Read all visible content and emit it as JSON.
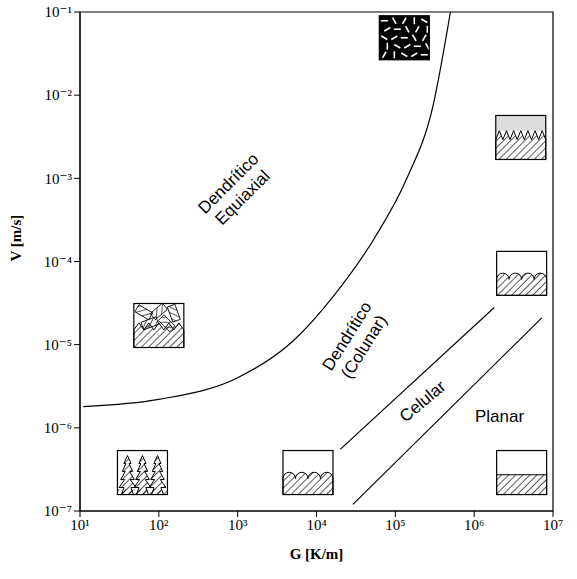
{
  "chart_data": {
    "type": "line",
    "x_label": "G [K/m]",
    "y_label": "V [m/s]",
    "log": true,
    "grid": false,
    "xlim": [
      10,
      10000000
    ],
    "ylim": [
      1e-07,
      0.1
    ],
    "xticks": [
      {
        "value": 10,
        "label": "10¹"
      },
      {
        "value": 100,
        "label": "10²"
      },
      {
        "value": 1000,
        "label": "10³"
      },
      {
        "value": 10000,
        "label": "10⁴"
      },
      {
        "value": 100000,
        "label": "10⁵"
      },
      {
        "value": 1000000,
        "label": "10⁶"
      },
      {
        "value": 10000000,
        "label": "10⁷"
      }
    ],
    "yticks": [
      {
        "value": 1e-07,
        "label": "10⁻⁷"
      },
      {
        "value": 1e-06,
        "label": "10⁻⁶"
      },
      {
        "value": 1e-05,
        "label": "10⁻⁵"
      },
      {
        "value": 0.0001,
        "label": "10⁻⁴"
      },
      {
        "value": 0.001,
        "label": "10⁻³"
      },
      {
        "value": 0.01,
        "label": "10⁻²"
      },
      {
        "value": 0.1,
        "label": "10⁻¹"
      }
    ],
    "series": [
      {
        "type": "line",
        "color": "#000000",
        "x": [
          11,
          100,
          1000,
          5000,
          17000,
          56000,
          140000,
          300000,
          500000
        ],
        "values": [
          1.8e-06,
          2.2e-06,
          4e-06,
          1.1e-05,
          4e-05,
          0.0002,
          0.001,
          0.0074,
          0.1
        ]
      },
      {
        "type": "line",
        "color": "#000000",
        "x": [
          20000,
          1800000
        ],
        "values": [
          5.5e-07,
          2.8e-05
        ]
      },
      {
        "type": "line",
        "color": "#000000",
        "x": [
          29000,
          7200000
        ],
        "values": [
          1.2e-07,
          2.1e-05
        ]
      },
      {
        "type": "scatter",
        "marker": "equiaxed",
        "x": [
          130000
        ],
        "values": [
          0.049
        ]
      },
      {
        "type": "scatter",
        "marker": "columnar",
        "x": [
          3900000
        ],
        "values": [
          0.0031
        ]
      },
      {
        "type": "scatter",
        "marker": "cellular",
        "x": [
          4000000,
          7800
        ],
        "values": [
          7.2e-05,
          2.9e-07
        ]
      },
      {
        "type": "scatter",
        "marker": "mixed",
        "x": [
          100
        ],
        "values": [
          1.7e-05
        ]
      },
      {
        "type": "scatter",
        "marker": "dendritic",
        "x": [
          62
        ],
        "values": [
          2.9e-07
        ]
      },
      {
        "type": "scatter",
        "marker": "planar",
        "x": [
          4000000
        ],
        "values": [
          2.9e-07
        ]
      }
    ],
    "annotations": [
      {
        "text": "Dendrítico Equiaxial",
        "x": 930,
        "y": 0.00072
      },
      {
        "text": "Dendrítico (Colunar)",
        "x": 31000,
        "y": 1.1e-05
      },
      {
        "text": "Celular",
        "x": 220000,
        "y": 2.1e-06
      },
      {
        "text": "Planar",
        "x": 2100000,
        "y": 1.4e-06
      }
    ]
  }
}
